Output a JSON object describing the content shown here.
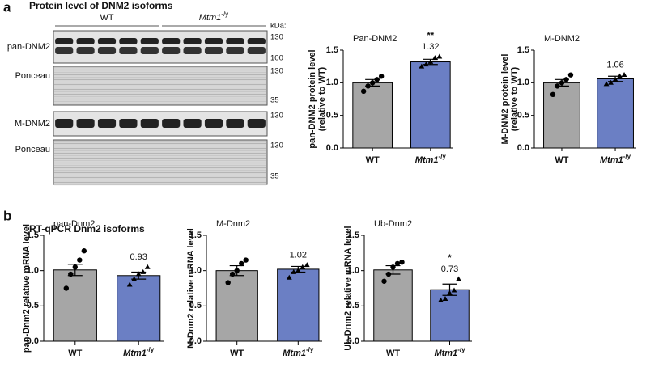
{
  "panel_a": {
    "letter": "a",
    "title": "Protein level of DNM2 isoforms",
    "blot": {
      "groups": [
        "WT",
        "Mtm1-/y"
      ],
      "kda_label": "kDa:",
      "rows": [
        {
          "label": "pan-DNM2",
          "markers": [
            "130",
            "100"
          ]
        },
        {
          "label": "Ponceau",
          "markers": [
            "130",
            "35"
          ]
        },
        {
          "label": "M-DNM2",
          "markers": [
            "130"
          ]
        },
        {
          "label": "Ponceau",
          "markers": [
            "130",
            "35"
          ]
        }
      ]
    }
  },
  "panel_b": {
    "letter": "b",
    "title": "RT-qPCR Dnm2 isoforms"
  },
  "chart_data": [
    {
      "type": "bar",
      "title": "Pan-DNM2",
      "ylabel": [
        "pan-DNM2 protein level",
        "(relative to WT)"
      ],
      "categories": [
        "WT",
        "Mtm1-/y"
      ],
      "values": [
        1.0,
        1.32
      ],
      "value_labels": [
        null,
        "1.32"
      ],
      "errors": [
        0.05,
        0.04
      ],
      "significance": [
        null,
        "**"
      ],
      "points": [
        [
          0.87,
          0.95,
          1.0,
          1.05,
          1.1
        ],
        [
          1.25,
          1.28,
          1.32,
          1.38,
          1.4
        ]
      ],
      "markers": [
        "circle",
        "triangle"
      ],
      "colors": [
        "#a6a6a6",
        "#6b7fc4"
      ],
      "ylim": [
        0,
        1.5
      ],
      "yticks": [
        {
          "value": 0,
          "label": "0.0"
        },
        {
          "value": 0.5,
          "label": "0.5"
        },
        {
          "value": 1,
          "label": "1.0"
        },
        {
          "value": 1.5,
          "label": "1.5"
        }
      ]
    },
    {
      "type": "bar",
      "title": "M-DNM2",
      "ylabel": [
        "M-DNM2 protein level",
        "(relative to WT)"
      ],
      "categories": [
        "WT",
        "Mtm1-/y"
      ],
      "values": [
        1.0,
        1.06
      ],
      "value_labels": [
        null,
        "1.06"
      ],
      "errors": [
        0.05,
        0.04
      ],
      "significance": [
        null,
        null
      ],
      "points": [
        [
          0.82,
          0.95,
          1.0,
          1.05,
          1.12
        ],
        [
          0.98,
          1.0,
          1.05,
          1.1,
          1.12
        ]
      ],
      "markers": [
        "circle",
        "triangle"
      ],
      "colors": [
        "#a6a6a6",
        "#6b7fc4"
      ],
      "ylim": [
        0,
        1.5
      ],
      "yticks": [
        {
          "value": 0,
          "label": "0.0"
        },
        {
          "value": 0.5,
          "label": "0.5"
        },
        {
          "value": 1,
          "label": "1.0"
        },
        {
          "value": 1.5,
          "label": "1.5"
        }
      ]
    },
    {
      "type": "bar",
      "title": "pan-Dnm2",
      "ylabel": [
        "pan-Dnm2 relative mRNA level"
      ],
      "categories": [
        "WT",
        "Mtm1-/y"
      ],
      "values": [
        1.01,
        0.93
      ],
      "value_labels": [
        null,
        "0.93"
      ],
      "errors": [
        0.08,
        0.05
      ],
      "significance": [
        null,
        null
      ],
      "points": [
        [
          0.75,
          0.95,
          1.05,
          1.15,
          1.28
        ],
        [
          0.8,
          0.88,
          0.95,
          0.98,
          1.05
        ]
      ],
      "markers": [
        "circle",
        "triangle"
      ],
      "colors": [
        "#a6a6a6",
        "#6b7fc4"
      ],
      "ylim": [
        0,
        1.5
      ],
      "yticks": [
        {
          "value": 0,
          "label": "0.0"
        },
        {
          "value": 0.5,
          "label": "0.5"
        },
        {
          "value": 1,
          "label": "1.0"
        },
        {
          "value": 1.5,
          "label": "1.5"
        }
      ]
    },
    {
      "type": "bar",
      "title": "M-Dnm2",
      "ylabel": [
        "M-Dnm2 relative mRNA level"
      ],
      "categories": [
        "WT",
        "Mtm1-/y"
      ],
      "values": [
        1.0,
        1.02
      ],
      "value_labels": [
        null,
        "1.02"
      ],
      "errors": [
        0.07,
        0.04
      ],
      "significance": [
        null,
        null
      ],
      "points": [
        [
          0.83,
          0.95,
          1.0,
          1.1,
          1.15
        ],
        [
          0.9,
          0.98,
          1.0,
          1.05,
          1.08
        ]
      ],
      "markers": [
        "circle",
        "triangle"
      ],
      "colors": [
        "#a6a6a6",
        "#6b7fc4"
      ],
      "ylim": [
        0,
        1.5
      ],
      "yticks": [
        {
          "value": 0,
          "label": "0.0"
        },
        {
          "value": 0.5,
          "label": "0.5"
        },
        {
          "value": 1,
          "label": "1.0"
        },
        {
          "value": 1.5,
          "label": "1.5"
        }
      ]
    },
    {
      "type": "bar",
      "title": "Ub-Dnm2",
      "ylabel": [
        "Ub-Dnm2 relative mRNA level"
      ],
      "categories": [
        "WT",
        "Mtm1-/y"
      ],
      "values": [
        1.01,
        0.73
      ],
      "value_labels": [
        null,
        "0.73"
      ],
      "errors": [
        0.06,
        0.08
      ],
      "significance": [
        null,
        "*"
      ],
      "points": [
        [
          0.85,
          0.95,
          1.05,
          1.1,
          1.12
        ],
        [
          0.58,
          0.6,
          0.68,
          0.72,
          0.88
        ]
      ],
      "markers": [
        "circle",
        "triangle"
      ],
      "colors": [
        "#a6a6a6",
        "#6b7fc4"
      ],
      "ylim": [
        0,
        1.5
      ],
      "yticks": [
        {
          "value": 0,
          "label": "0.0"
        },
        {
          "value": 0.5,
          "label": "0.5"
        },
        {
          "value": 1,
          "label": "1.0"
        },
        {
          "value": 1.5,
          "label": "1.5"
        }
      ]
    }
  ]
}
